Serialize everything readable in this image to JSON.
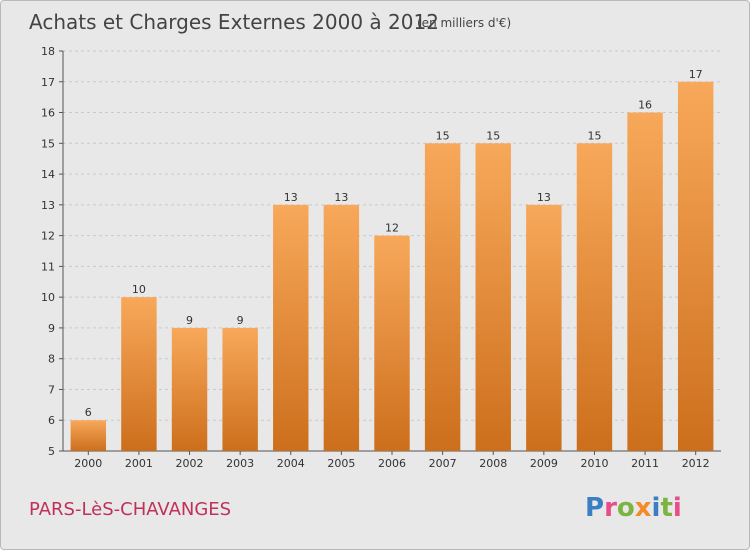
{
  "header": {
    "title": "Achats et Charges Externes 2000 à 2012",
    "unit": "(en milliers d'€)"
  },
  "footer": {
    "place": "PARS-LèS-CHAVANGES",
    "logo": {
      "text": "Proxiti",
      "letter_colors": [
        "#3a7fc4",
        "#e84c8b",
        "#7cb342",
        "#f28c28",
        "#3a7fc4",
        "#7cb342",
        "#e84c8b"
      ]
    }
  },
  "colors": {
    "bar_top": "#f8a85a",
    "bar_bottom": "#cc6f1c",
    "grid": "#c9c9c9",
    "plot_bg": "#e8e8e8",
    "axis": "#555555"
  },
  "chart_data": {
    "type": "bar",
    "categories": [
      "2000",
      "2001",
      "2002",
      "2003",
      "2004",
      "2005",
      "2006",
      "2007",
      "2008",
      "2009",
      "2010",
      "2011",
      "2012"
    ],
    "values": [
      6,
      10,
      9,
      9,
      13,
      13,
      12,
      15,
      15,
      13,
      15,
      16,
      17
    ],
    "title": "Achats et Charges Externes 2000 à 2012",
    "xlabel": "",
    "ylabel": "",
    "ylim": [
      5,
      18
    ],
    "yticks": [
      5,
      6,
      7,
      8,
      9,
      10,
      11,
      12,
      13,
      14,
      15,
      16,
      17,
      18
    ],
    "grid": "horizontal dashed",
    "legend": "none"
  }
}
